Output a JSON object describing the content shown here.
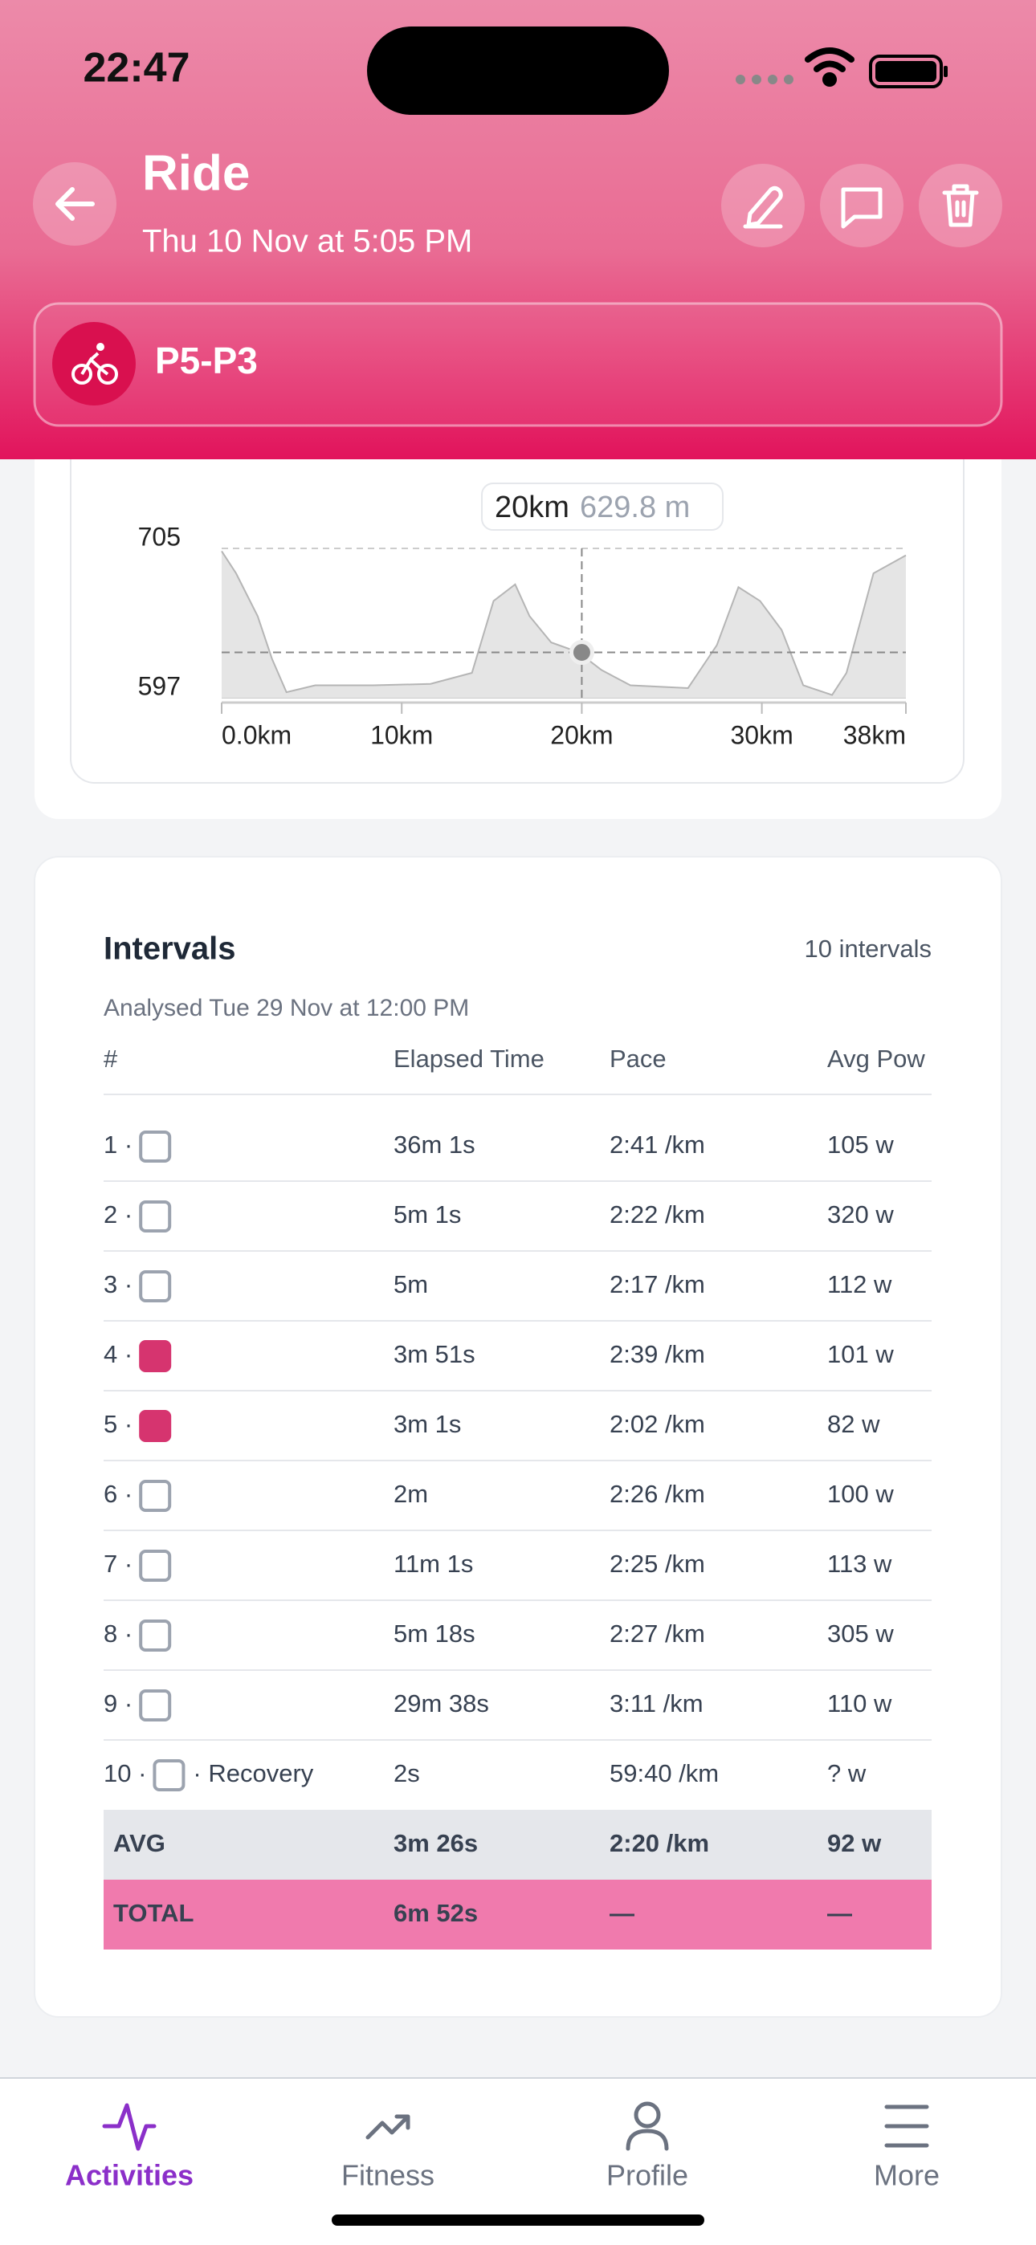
{
  "status_bar": {
    "time": "22:47"
  },
  "header": {
    "title": "Ride",
    "subtitle": "Thu 10 Nov at 5:05 PM",
    "activity_name": "P5-P3"
  },
  "elevation_chart": {
    "type": "area",
    "x": [
      0,
      0.8,
      2.0,
      2.8,
      3.6,
      5.2,
      8.4,
      11.6,
      13.9,
      15.1,
      16.3,
      17.1,
      18.3,
      19.8,
      21.1,
      22.7,
      25.9,
      27.5,
      28.7,
      29.9,
      31.1,
      32.3,
      33.9,
      34.7,
      36.2,
      38.0
    ],
    "values": [
      703,
      687,
      656,
      625,
      601,
      606,
      606,
      607,
      615,
      667,
      679,
      656,
      637,
      630,
      617,
      606,
      604,
      635,
      677,
      667,
      646,
      606,
      599,
      615,
      687,
      700
    ],
    "xlim": [
      0,
      38
    ],
    "xticks": [
      {
        "value": 0,
        "label": "0.0km"
      },
      {
        "value": 10,
        "label": "10km"
      },
      {
        "value": 20,
        "label": "20km"
      },
      {
        "value": 30,
        "label": "30km"
      },
      {
        "value": 38,
        "label": "38km"
      }
    ],
    "ylim": [
      597,
      705
    ],
    "yticks": [
      597,
      705
    ],
    "color": "#e5e5e5",
    "tooltip": {
      "x": 20,
      "x_label": "20km",
      "value": 629.8,
      "value_label": "629.8 m"
    }
  },
  "intervals": {
    "title": "Intervals",
    "count": "10 intervals",
    "analysed": "Analysed Tue 29 Nov at 12:00 PM",
    "columns": [
      "#",
      "Elapsed Time",
      "Pace",
      "Avg Pow"
    ],
    "rows": [
      {
        "num": "1 ·",
        "checked": false,
        "elapsed": "36m 1s",
        "pace": "2:41 /km",
        "power": "105 w"
      },
      {
        "num": "2 ·",
        "checked": false,
        "elapsed": "5m 1s",
        "pace": "2:22 /km",
        "power": "320 w"
      },
      {
        "num": "3 ·",
        "checked": false,
        "elapsed": "5m",
        "pace": "2:17 /km",
        "power": "112 w"
      },
      {
        "num": "4 ·",
        "checked": true,
        "elapsed": "3m 51s",
        "pace": "2:39 /km",
        "power": "101 w"
      },
      {
        "num": "5 ·",
        "checked": true,
        "elapsed": "3m 1s",
        "pace": "2:02 /km",
        "power": "82 w"
      },
      {
        "num": "6 ·",
        "checked": false,
        "elapsed": "2m",
        "pace": "2:26 /km",
        "power": "100 w"
      },
      {
        "num": "7 ·",
        "checked": false,
        "elapsed": "11m 1s",
        "pace": "2:25 /km",
        "power": "113 w"
      },
      {
        "num": "8 ·",
        "checked": false,
        "elapsed": "5m 18s",
        "pace": "2:27 /km",
        "power": "305 w"
      },
      {
        "num": "9 ·",
        "checked": false,
        "elapsed": "29m 38s",
        "pace": "3:11 /km",
        "power": "110 w"
      },
      {
        "num": "10 ·",
        "checked": false,
        "suffix": "· Recovery",
        "elapsed": "2s",
        "pace": "59:40 /km",
        "power": "? w"
      }
    ],
    "avg": {
      "label": "AVG",
      "elapsed": "3m 26s",
      "pace": "2:20 /km",
      "power": "92 w"
    },
    "total": {
      "label": "TOTAL",
      "elapsed": "6m 52s",
      "pace": "—",
      "power": "—"
    }
  },
  "nav": {
    "items": [
      "Activities",
      "Fitness",
      "Profile",
      "More"
    ],
    "active": 0
  }
}
